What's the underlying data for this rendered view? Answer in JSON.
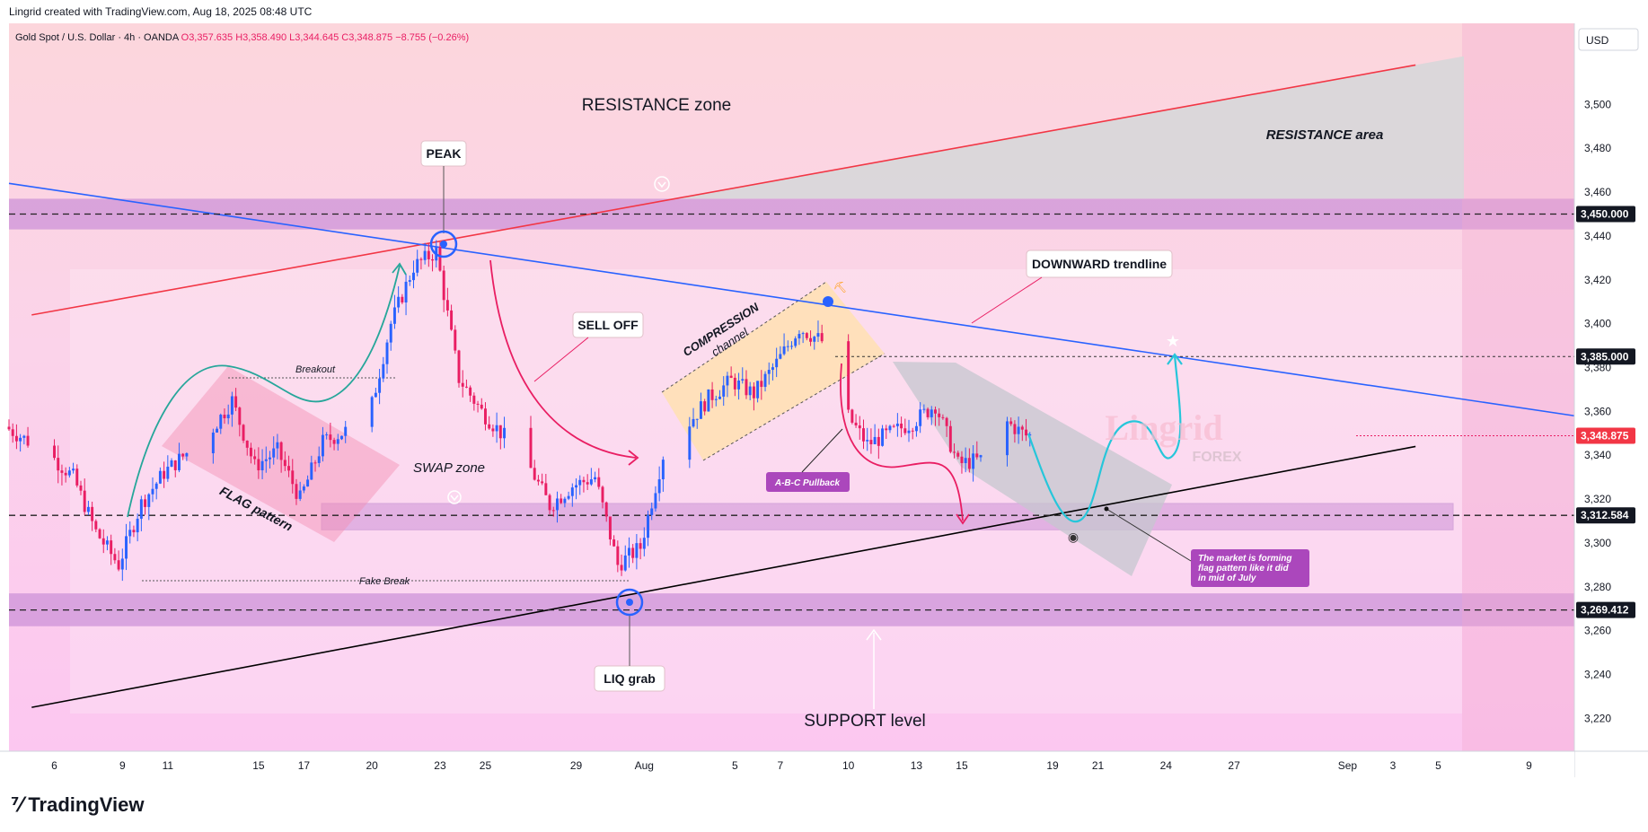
{
  "header": {
    "credit": "Lingrid created with TradingView.com, Aug 18, 2025 08:48 UTC",
    "symbol": "Gold Spot / U.S. Dollar · 4h · OANDA",
    "open": "O3,357.635",
    "high": "H3,358.490",
    "low": "L3,344.645",
    "close": "C3,348.875",
    "change": "−8.755 (−0.26%)"
  },
  "currency": "USD",
  "footer": {
    "brand": "TradingView",
    "logo_icon": "tradingview-logo-icon"
  },
  "watermark": {
    "line1": "Lingrid",
    "line2": "FOREX"
  },
  "colors": {
    "bull": "#2962ff",
    "bear": "#e91e63",
    "resistance_line": "#f23645",
    "downtrend": "#2962ff",
    "support_line": "#000000",
    "zone": "#ce93d8"
  },
  "chart_data": {
    "type": "candlestick",
    "title": "",
    "xlabel": "",
    "ylabel": "",
    "ylim": [
      3205,
      3537
    ],
    "x_range": [
      "2025-07-04",
      "2025-09-11"
    ],
    "x_ticks": [
      {
        "date": "2025-07-06",
        "label": "6"
      },
      {
        "date": "2025-07-09",
        "label": "9"
      },
      {
        "date": "2025-07-11",
        "label": "11"
      },
      {
        "date": "2025-07-15",
        "label": "15"
      },
      {
        "date": "2025-07-17",
        "label": "17"
      },
      {
        "date": "2025-07-20",
        "label": "20"
      },
      {
        "date": "2025-07-23",
        "label": "23"
      },
      {
        "date": "2025-07-25",
        "label": "25"
      },
      {
        "date": "2025-07-29",
        "label": "29"
      },
      {
        "date": "2025-08-01",
        "label": "Aug"
      },
      {
        "date": "2025-08-05",
        "label": "5"
      },
      {
        "date": "2025-08-07",
        "label": "7"
      },
      {
        "date": "2025-08-10",
        "label": "10"
      },
      {
        "date": "2025-08-13",
        "label": "13"
      },
      {
        "date": "2025-08-15",
        "label": "15"
      },
      {
        "date": "2025-08-19",
        "label": "19"
      },
      {
        "date": "2025-08-21",
        "label": "21"
      },
      {
        "date": "2025-08-24",
        "label": "24"
      },
      {
        "date": "2025-08-27",
        "label": "27"
      },
      {
        "date": "2025-09-01",
        "label": "Sep"
      },
      {
        "date": "2025-09-03",
        "label": "3"
      },
      {
        "date": "2025-09-05",
        "label": "5"
      },
      {
        "date": "2025-09-09",
        "label": "9"
      }
    ],
    "y_ticks": [
      3220,
      3240,
      3260,
      3280,
      3300,
      3320,
      3340,
      3360,
      3380,
      3400,
      3420,
      3440,
      3460,
      3480,
      3500
    ],
    "level_labels": [
      {
        "value": 3450.0,
        "label": "3,450.000",
        "style": "dark"
      },
      {
        "value": 3385.0,
        "label": "3,385.000",
        "style": "dark"
      },
      {
        "value": 3348.875,
        "label": "3,348.875",
        "style": "red"
      },
      {
        "value": 3312.584,
        "label": "3,312.584",
        "style": "dark"
      },
      {
        "value": 3269.412,
        "label": "3,269.412",
        "style": "dark"
      }
    ],
    "anchors": [
      {
        "date": "2025-07-04",
        "price": 3353
      },
      {
        "date": "2025-07-06",
        "price": 3340
      },
      {
        "date": "2025-07-07",
        "price": 3330
      },
      {
        "date": "2025-07-08",
        "price": 3305
      },
      {
        "date": "2025-07-09",
        "price": 3290
      },
      {
        "date": "2025-07-10",
        "price": 3318
      },
      {
        "date": "2025-07-11",
        "price": 3332
      },
      {
        "date": "2025-07-13",
        "price": 3350
      },
      {
        "date": "2025-07-14",
        "price": 3365
      },
      {
        "date": "2025-07-15",
        "price": 3335
      },
      {
        "date": "2025-07-16",
        "price": 3342
      },
      {
        "date": "2025-07-17",
        "price": 3320
      },
      {
        "date": "2025-07-18",
        "price": 3346
      },
      {
        "date": "2025-07-20",
        "price": 3356
      },
      {
        "date": "2025-07-21",
        "price": 3400
      },
      {
        "date": "2025-07-22",
        "price": 3426
      },
      {
        "date": "2025-07-23",
        "price": 3433
      },
      {
        "date": "2025-07-24",
        "price": 3375
      },
      {
        "date": "2025-07-25",
        "price": 3360
      },
      {
        "date": "2025-07-27",
        "price": 3337
      },
      {
        "date": "2025-07-28",
        "price": 3317
      },
      {
        "date": "2025-07-29",
        "price": 3326
      },
      {
        "date": "2025-07-30",
        "price": 3330
      },
      {
        "date": "2025-07-31",
        "price": 3290
      },
      {
        "date": "2025-08-01",
        "price": 3298
      },
      {
        "date": "2025-08-02",
        "price": 3340
      },
      {
        "date": "2025-08-04",
        "price": 3366
      },
      {
        "date": "2025-08-05",
        "price": 3374
      },
      {
        "date": "2025-08-06",
        "price": 3368
      },
      {
        "date": "2025-08-07",
        "price": 3382
      },
      {
        "date": "2025-08-08",
        "price": 3398
      },
      {
        "date": "2025-08-09",
        "price": 3392
      },
      {
        "date": "2025-08-10",
        "price": 3360
      },
      {
        "date": "2025-08-11",
        "price": 3345
      },
      {
        "date": "2025-08-12",
        "price": 3350
      },
      {
        "date": "2025-08-13",
        "price": 3355
      },
      {
        "date": "2025-08-14",
        "price": 3363
      },
      {
        "date": "2025-08-15",
        "price": 3336
      },
      {
        "date": "2025-08-16",
        "price": 3338
      },
      {
        "date": "2025-08-17",
        "price": 3356
      },
      {
        "date": "2025-08-18",
        "price": 3349
      }
    ],
    "drawings": {
      "resistance_line": {
        "from": {
          "date": "2025-07-05",
          "price": 3404
        },
        "to": {
          "date": "2025-09-04",
          "price": 3518
        }
      },
      "downtrend_line": {
        "from": {
          "date": "2025-07-04",
          "price": 3464
        },
        "to": {
          "date": "2025-09-11",
          "price": 3358
        }
      },
      "support_line": {
        "from": {
          "date": "2025-07-05",
          "price": 3225
        },
        "to": {
          "date": "2025-09-04",
          "price": 3344
        }
      }
    },
    "annotations": {
      "resistance_zone": "RESISTANCE zone",
      "resistance_area": "RESISTANCE area",
      "peak": "PEAK",
      "sell_off": "SELL OFF",
      "downward_trendline": "DOWNWARD trendline",
      "compression_line1": "COMPRESSION",
      "compression_line2": "channel",
      "breakout": "Breakout",
      "swap_zone": "SWAP zone",
      "flag_pattern": "FLAG pattern",
      "fake_break": "Fake Break",
      "abc_pullback": "A-B-C Pullback",
      "liq_grab": "LIQ grab",
      "support_level": "SUPPORT level",
      "flag_note": [
        "The market is forming",
        "flag pattern like it did",
        "in mid of July"
      ]
    }
  }
}
